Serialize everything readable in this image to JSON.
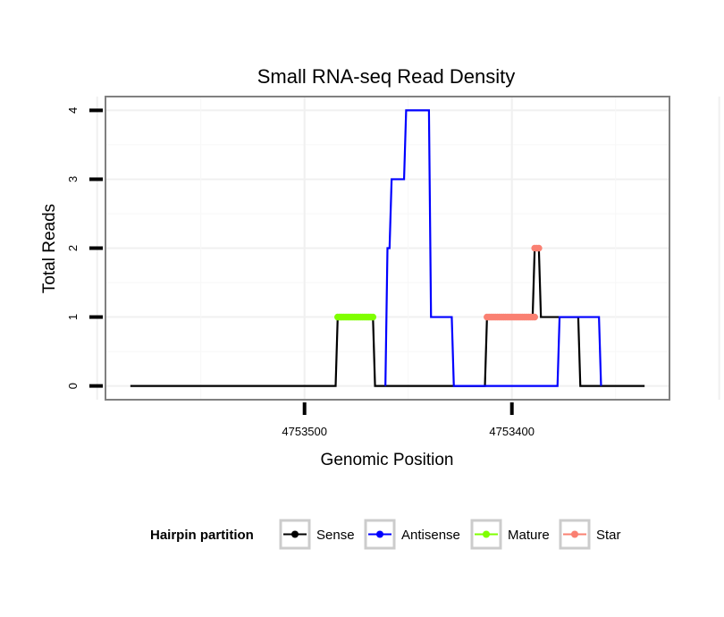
{
  "chart_data": {
    "type": "line",
    "title": "Small RNA-seq Read Density",
    "xlabel": "Genomic Position",
    "ylabel": "Total Reads",
    "x_reversed": true,
    "xlim": [
      4753596,
      4753324
    ],
    "ylim": [
      -0.2,
      4.2
    ],
    "x_ticks": [
      4753500,
      4753400
    ],
    "x_tick_labels": [
      "4753500",
      "4753400"
    ],
    "y_ticks": [
      0,
      1,
      2,
      3,
      4
    ],
    "y_tick_labels": [
      "0",
      "1",
      "2",
      "3",
      "4"
    ],
    "grid": true,
    "legend": {
      "title": "Hairpin partition",
      "placement": "bottom",
      "items": [
        {
          "label": "Sense",
          "color": "#000000"
        },
        {
          "label": "Antisense",
          "color": "#0000ff"
        },
        {
          "label": "Mature",
          "color": "#7fff00"
        },
        {
          "label": "Star",
          "color": "#fa8072"
        }
      ]
    },
    "series": [
      {
        "name": "Sense",
        "color": "#000000",
        "step": true,
        "x": [
          4753584,
          4753485,
          4753484,
          4753467,
          4753466,
          4753413,
          4753412,
          4753390,
          4753389,
          4753387,
          4753386,
          4753368,
          4753367,
          4753336
        ],
        "y": [
          0,
          0,
          1,
          1,
          0,
          0,
          1,
          1,
          2,
          2,
          1,
          1,
          0,
          0
        ]
      },
      {
        "name": "Antisense",
        "color": "#0000ff",
        "step": true,
        "x": [
          4753461,
          4753460,
          4753459,
          4753458,
          4753452,
          4753451,
          4753440,
          4753439,
          4753429,
          4753428,
          4753378,
          4753377,
          4753358,
          4753357
        ],
        "y": [
          0,
          2,
          2,
          3,
          3,
          4,
          4,
          1,
          1,
          0,
          0,
          1,
          1,
          0
        ]
      },
      {
        "name": "Mature",
        "color": "#7fff00",
        "x": [
          4753484,
          4753467
        ],
        "y": [
          1,
          1
        ]
      },
      {
        "name": "Star",
        "color": "#fa8072",
        "segments": [
          {
            "x": [
              4753412,
              4753389
            ],
            "y": [
              1,
              1
            ]
          },
          {
            "x": [
              4753389,
              4753387
            ],
            "y": [
              2,
              2
            ]
          }
        ]
      }
    ]
  }
}
